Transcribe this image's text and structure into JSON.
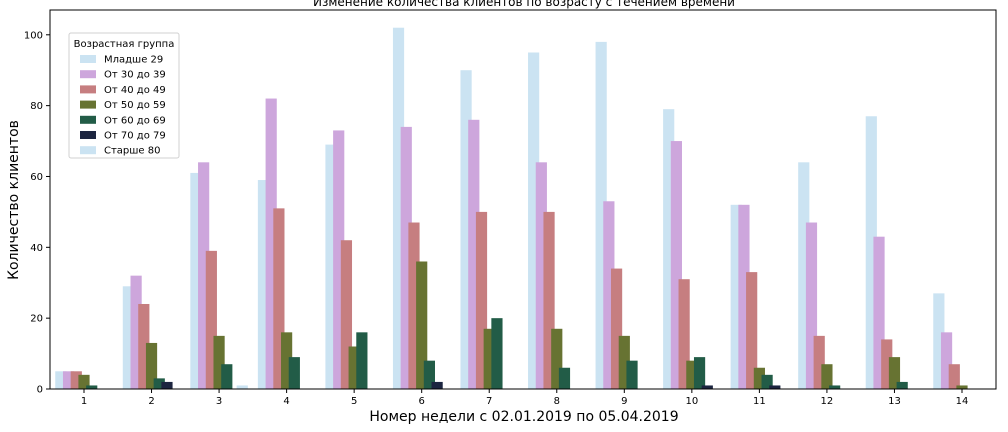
{
  "chart_data": {
    "type": "bar",
    "title": "Изменение количества клиентов по возрасту с течением времени",
    "xlabel": "Номер недели с 02.01.2019 по 05.04.2019",
    "ylabel": "Количество клиентов",
    "categories": [
      "1",
      "2",
      "3",
      "4",
      "5",
      "6",
      "7",
      "8",
      "9",
      "10",
      "11",
      "12",
      "13",
      "14"
    ],
    "ylim": [
      0,
      107
    ],
    "yticks": [
      0,
      20,
      40,
      60,
      80,
      100
    ],
    "grid": false,
    "legend": {
      "title": "Возрастная группа",
      "placement": "upper-left"
    },
    "series": [
      {
        "name": "Младше 29",
        "color": "#cbe3f2",
        "values": [
          5,
          29,
          61,
          59,
          69,
          102,
          90,
          95,
          98,
          79,
          52,
          64,
          77,
          27
        ]
      },
      {
        "name": "От 30 до 39",
        "color": "#cda6dc",
        "values": [
          5,
          32,
          64,
          82,
          73,
          74,
          76,
          64,
          53,
          70,
          52,
          47,
          43,
          16
        ]
      },
      {
        "name": "От 40 до 49",
        "color": "#c67e80",
        "values": [
          5,
          24,
          39,
          51,
          42,
          47,
          50,
          50,
          34,
          31,
          33,
          15,
          14,
          7
        ]
      },
      {
        "name": "От 50 до 59",
        "color": "#677332",
        "values": [
          4,
          13,
          15,
          16,
          12,
          36,
          17,
          17,
          15,
          8,
          6,
          7,
          9,
          1
        ]
      },
      {
        "name": "От 60 до 69",
        "color": "#225c47",
        "values": [
          1,
          3,
          7,
          9,
          16,
          8,
          20,
          6,
          8,
          9,
          4,
          1,
          2,
          0
        ]
      },
      {
        "name": "От 70 до 79",
        "color": "#1c2540",
        "values": [
          0,
          2,
          0,
          0,
          0,
          2,
          0,
          0,
          0,
          1,
          1,
          0,
          0,
          0
        ]
      },
      {
        "name": "Старше 80",
        "color": "#cbe3f2",
        "values": [
          0,
          0,
          1,
          0,
          0,
          0,
          0,
          0,
          0,
          0,
          0,
          0,
          0,
          0
        ]
      }
    ]
  }
}
